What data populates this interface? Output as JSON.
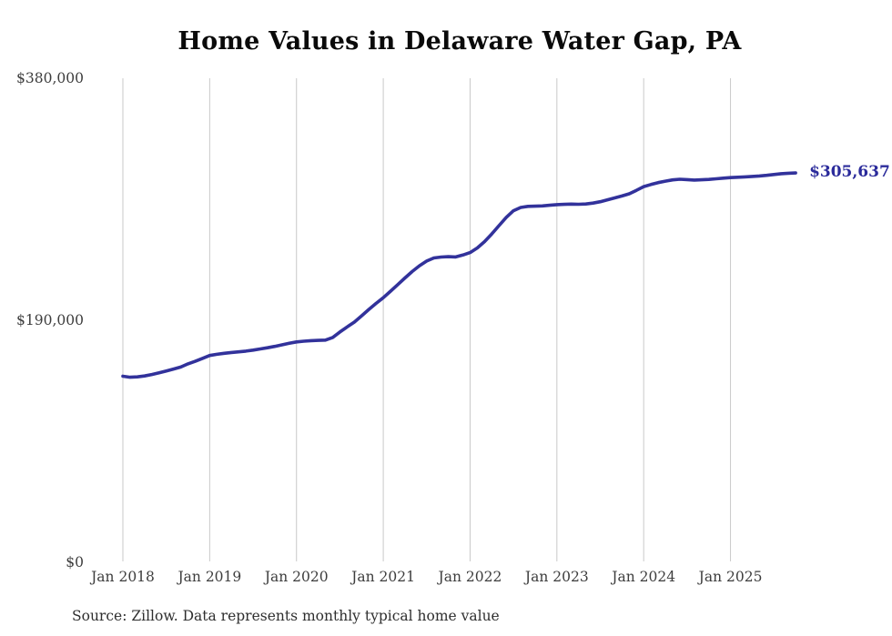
{
  "chart": {
    "title": "Home Values in Delaware Water Gap, PA",
    "end_label": "$305,637",
    "source": "Source: Zillow. Data represents monthly typical home value"
  },
  "chart_data": {
    "type": "line",
    "title": "Home Values in Delaware Water Gap, PA",
    "xlabel": "",
    "ylabel": "",
    "ylim": [
      0,
      380000
    ],
    "grid": "vertical-yearly",
    "legend": "none",
    "line_color": "#32329b",
    "end_value_label": "$305,637",
    "end_value": 305637,
    "y_ticks": [
      {
        "label": "$0",
        "value": 0
      },
      {
        "label": "$190,000",
        "value": 190000
      },
      {
        "label": "$380,000",
        "value": 380000
      }
    ],
    "x_tick_labels": [
      "Jan 2018",
      "Jan 2019",
      "Jan 2020",
      "Jan 2021",
      "Jan 2022",
      "Jan 2023",
      "Jan 2024",
      "Jan 2025"
    ],
    "x_tick_interval_months": 12,
    "frequency": "monthly",
    "x": [
      "2018-01",
      "2018-02",
      "2018-03",
      "2018-04",
      "2018-05",
      "2018-06",
      "2018-07",
      "2018-08",
      "2018-09",
      "2018-10",
      "2018-11",
      "2018-12",
      "2019-01",
      "2019-02",
      "2019-03",
      "2019-04",
      "2019-05",
      "2019-06",
      "2019-07",
      "2019-08",
      "2019-09",
      "2019-10",
      "2019-11",
      "2019-12",
      "2020-01",
      "2020-02",
      "2020-03",
      "2020-04",
      "2020-05",
      "2020-06",
      "2020-07",
      "2020-08",
      "2020-09",
      "2020-10",
      "2020-11",
      "2020-12",
      "2021-01",
      "2021-02",
      "2021-03",
      "2021-04",
      "2021-05",
      "2021-06",
      "2021-07",
      "2021-08",
      "2021-09",
      "2021-10",
      "2021-11",
      "2021-12",
      "2022-01",
      "2022-02",
      "2022-03",
      "2022-04",
      "2022-05",
      "2022-06",
      "2022-07",
      "2022-08",
      "2022-09",
      "2022-10",
      "2022-11",
      "2022-12",
      "2023-01",
      "2023-02",
      "2023-03",
      "2023-04",
      "2023-05",
      "2023-06",
      "2023-07",
      "2023-08",
      "2023-09",
      "2023-10",
      "2023-11",
      "2023-12",
      "2024-01",
      "2024-02",
      "2024-03",
      "2024-04",
      "2024-05",
      "2024-06",
      "2024-07",
      "2024-08",
      "2024-09",
      "2024-10",
      "2024-11",
      "2024-12",
      "2025-01",
      "2025-02",
      "2025-03",
      "2025-04",
      "2025-05",
      "2025-06",
      "2025-07",
      "2025-08",
      "2025-09",
      "2025-10"
    ],
    "values": [
      146045,
      145300,
      145600,
      146300,
      147400,
      148700,
      150200,
      151700,
      153300,
      155800,
      157800,
      160100,
      162352,
      163300,
      164100,
      164700,
      165200,
      165800,
      166606,
      167500,
      168400,
      169500,
      170700,
      171900,
      172987,
      173600,
      174000,
      174200,
      174405,
      176500,
      180786,
      184800,
      188585,
      193500,
      198500,
      203200,
      207730,
      212800,
      218000,
      223200,
      228300,
      232800,
      236500,
      238900,
      239627,
      239900,
      239700,
      241200,
      243172,
      246800,
      251800,
      257800,
      264300,
      270800,
      276000,
      278600,
      279400,
      279600,
      279800,
      280300,
      280766,
      281000,
      281200,
      281100,
      281300,
      282000,
      283100,
      284600,
      286100,
      287600,
      289300,
      292000,
      294944,
      296600,
      298100,
      299200,
      300200,
      300700,
      300400,
      300100,
      300300,
      300600,
      301100,
      301600,
      302034,
      302300,
      302600,
      302900,
      303300,
      303800,
      304400,
      305100,
      305400,
      305637
    ]
  }
}
